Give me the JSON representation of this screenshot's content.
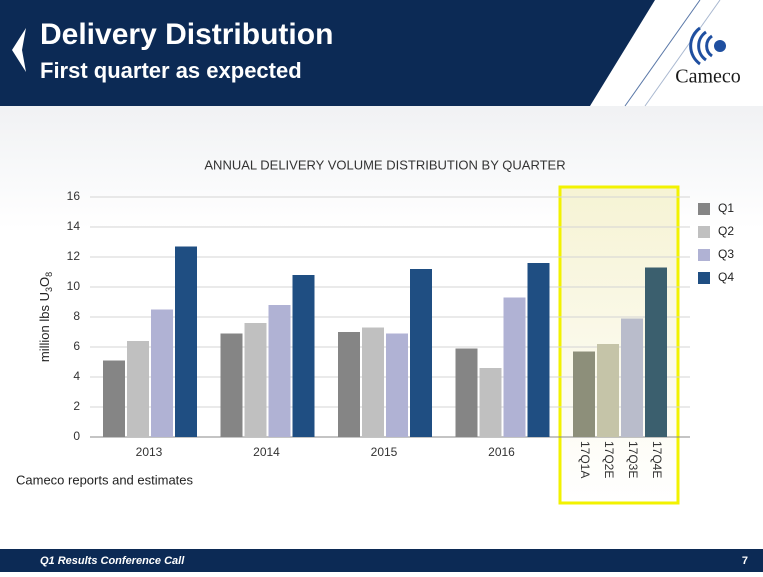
{
  "header": {
    "title": "Delivery Distribution",
    "subtitle": "First quarter as expected",
    "logo": "Cameco"
  },
  "chart_data": {
    "type": "bar",
    "title": "ANNUAL DELIVERY VOLUME DISTRIBUTION BY QUARTER",
    "y_label": "million lbs U3O8",
    "categories": [
      "2013",
      "2014",
      "2015",
      "2016"
    ],
    "series": [
      {
        "name": "Q1",
        "color": "#858585",
        "values": [
          5.1,
          6.9,
          7.0,
          5.9
        ]
      },
      {
        "name": "Q2",
        "color": "#c0c0c0",
        "values": [
          6.4,
          7.6,
          7.3,
          4.6
        ]
      },
      {
        "name": "Q3",
        "color": "#b0b2d4",
        "values": [
          8.5,
          8.8,
          6.9,
          9.3
        ]
      },
      {
        "name": "Q4",
        "color": "#1f4e82",
        "values": [
          12.7,
          10.8,
          11.2,
          11.6
        ]
      }
    ],
    "highlight": {
      "categories": [
        "17Q1A",
        "17Q2E",
        "17Q3E",
        "17Q4E"
      ],
      "values": [
        5.7,
        6.2,
        7.9,
        11.3
      ],
      "colors": [
        "#8d8f7a",
        "#c5c4a8",
        "#b9bccb",
        "#3b5f6e"
      ],
      "border": "#f2f200"
    },
    "ylim": [
      0,
      16
    ],
    "yticks": [
      0,
      2,
      4,
      6,
      8,
      10,
      12,
      14,
      16
    ],
    "grid": true,
    "legend": "right",
    "note": "Cameco reports and estimates"
  },
  "footer": {
    "text": "Q1 Results Conference Call",
    "page": "7"
  }
}
